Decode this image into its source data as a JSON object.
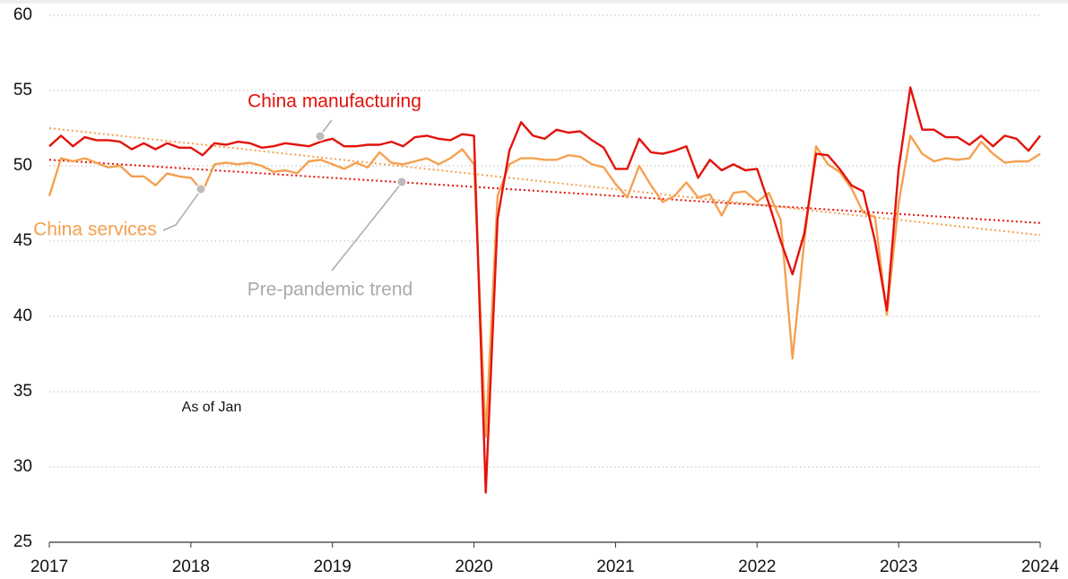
{
  "chart_data": {
    "type": "line",
    "x": [
      2017,
      2017.083,
      2017.167,
      2017.25,
      2017.333,
      2017.417,
      2017.5,
      2017.583,
      2017.667,
      2017.75,
      2017.833,
      2017.917,
      2018,
      2018.083,
      2018.167,
      2018.25,
      2018.333,
      2018.417,
      2018.5,
      2018.583,
      2018.667,
      2018.75,
      2018.833,
      2018.917,
      2019,
      2019.083,
      2019.167,
      2019.25,
      2019.333,
      2019.417,
      2019.5,
      2019.583,
      2019.667,
      2019.75,
      2019.833,
      2019.917,
      2020,
      2020.083,
      2020.167,
      2020.25,
      2020.333,
      2020.417,
      2020.5,
      2020.583,
      2020.667,
      2020.75,
      2020.833,
      2020.917,
      2021,
      2021.083,
      2021.167,
      2021.25,
      2021.333,
      2021.417,
      2021.5,
      2021.583,
      2021.667,
      2021.75,
      2021.833,
      2021.917,
      2022,
      2022.083,
      2022.167,
      2022.25,
      2022.333,
      2022.417,
      2022.5,
      2022.583,
      2022.667,
      2022.75,
      2022.833,
      2022.917,
      2023,
      2023.083,
      2023.167,
      2023.25,
      2023.333,
      2023.417,
      2023.5,
      2023.583,
      2023.667,
      2023.75,
      2023.833,
      2023.917,
      2024
    ],
    "series": [
      {
        "name": "China manufacturing",
        "color": "#e3120b",
        "values": [
          51.3,
          52.0,
          51.3,
          51.9,
          51.7,
          51.7,
          51.6,
          51.1,
          51.5,
          51.1,
          51.5,
          51.2,
          51.2,
          50.7,
          51.5,
          51.4,
          51.6,
          51.5,
          51.2,
          51.3,
          51.5,
          51.4,
          51.3,
          51.6,
          51.8,
          51.3,
          51.3,
          51.4,
          51.4,
          51.6,
          51.3,
          51.9,
          52.0,
          51.8,
          51.7,
          52.1,
          52.0,
          28.3,
          46.5,
          51.0,
          52.9,
          52.0,
          51.8,
          52.4,
          52.2,
          52.3,
          51.7,
          51.2,
          49.8,
          49.8,
          51.8,
          50.9,
          50.8,
          51.0,
          51.3,
          49.2,
          50.4,
          49.7,
          50.1,
          49.7,
          49.8,
          47.5,
          45.0,
          42.8,
          45.5,
          50.8,
          50.7,
          49.8,
          48.7,
          48.3,
          45.0,
          40.4,
          49.8,
          55.2,
          52.4,
          52.4,
          51.9,
          51.9,
          51.4,
          52.0,
          51.3,
          52.0,
          51.8,
          51.0,
          52.0
        ]
      },
      {
        "name": "China services",
        "color": "#f5a050",
        "values": [
          48.0,
          50.5,
          50.3,
          50.5,
          50.2,
          49.9,
          50.0,
          49.3,
          49.3,
          48.7,
          49.5,
          49.3,
          49.2,
          48.3,
          50.1,
          50.2,
          50.1,
          50.2,
          50.0,
          49.6,
          49.7,
          49.5,
          50.3,
          50.4,
          50.1,
          49.8,
          50.2,
          49.9,
          50.9,
          50.2,
          50.1,
          50.3,
          50.5,
          50.1,
          50.5,
          51.1,
          50.1,
          32.0,
          48.0,
          50.1,
          50.5,
          50.5,
          50.4,
          50.4,
          50.7,
          50.6,
          50.1,
          49.9,
          48.8,
          47.9,
          50.0,
          48.7,
          47.6,
          48.0,
          48.9,
          47.9,
          48.1,
          46.7,
          48.2,
          48.3,
          47.6,
          48.2,
          46.4,
          37.2,
          45.0,
          51.3,
          50.1,
          49.6,
          48.5,
          46.9,
          46.6,
          40.1,
          47.5,
          52.0,
          50.8,
          50.3,
          50.5,
          50.4,
          50.5,
          51.6,
          50.8,
          50.2,
          50.3,
          50.3,
          50.8
        ]
      }
    ],
    "trends": [
      {
        "color": "#e3120b",
        "x": [
          2017,
          2024
        ],
        "values": [
          50.4,
          46.2
        ]
      },
      {
        "color": "#f5a050",
        "x": [
          2017,
          2024
        ],
        "values": [
          52.5,
          45.4
        ]
      }
    ],
    "annotations": [
      "Pre-pandemic trend",
      "As of Jan"
    ],
    "xlim": [
      2017,
      2024
    ],
    "xticks": [
      2017,
      2018,
      2019,
      2020,
      2021,
      2022,
      2023,
      2024
    ],
    "ylim": [
      25,
      60
    ],
    "yticks": [
      25,
      30,
      35,
      40,
      45,
      50,
      55,
      60
    ],
    "grid": true
  }
}
